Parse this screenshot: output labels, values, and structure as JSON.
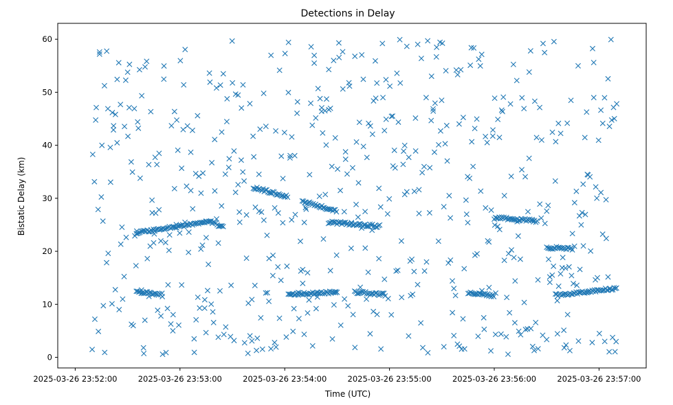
{
  "chart_data": {
    "type": "scatter",
    "title": "Detections in Delay",
    "xlabel": "Time (UTC)",
    "ylabel": "Bistatic Delay (km)",
    "marker": "x",
    "color": "#1f77b4",
    "xlim": [
      "2025-03-26 23:51:50",
      "2025-03-26 23:57:27"
    ],
    "ylim": [
      -2,
      63
    ],
    "x_ticks": [
      "2025-03-26 23:52:00",
      "2025-03-26 23:53:00",
      "2025-03-26 23:54:00",
      "2025-03-26 23:55:00",
      "2025-03-26 23:56:00",
      "2025-03-26 23:57:00"
    ],
    "y_ticks": [
      0,
      10,
      20,
      30,
      40,
      50,
      60
    ],
    "grid": false,
    "legend": "none",
    "start_time": "2025-03-26 23:52:10",
    "end_time": "2025-03-26 23:57:10",
    "interval_s": 1,
    "tracks": [
      {
        "start": "2025-03-26 23:52:35",
        "end": "2025-03-26 23:52:50",
        "y_start": 12.3,
        "y_end": 11.9
      },
      {
        "start": "2025-03-26 23:52:35",
        "end": "2025-03-26 23:53:15",
        "y_start": 23.5,
        "y_end": 25.5
      },
      {
        "start": "2025-03-26 23:53:15",
        "end": "2025-03-26 23:53:25",
        "y_start": 25.8,
        "y_end": 24.6
      },
      {
        "start": "2025-03-26 23:53:42",
        "end": "2025-03-26 23:54:02",
        "y_start": 32.0,
        "y_end": 30.3
      },
      {
        "start": "2025-03-26 23:54:10",
        "end": "2025-03-26 23:54:30",
        "y_start": 29.5,
        "y_end": 27.5
      },
      {
        "start": "2025-03-26 23:54:25",
        "end": "2025-03-26 23:54:55",
        "y_start": 25.5,
        "y_end": 24.7
      },
      {
        "start": "2025-03-26 23:54:02",
        "end": "2025-03-26 23:54:30",
        "y_start": 11.8,
        "y_end": 12.3
      },
      {
        "start": "2025-03-26 23:54:40",
        "end": "2025-03-26 23:54:58",
        "y_start": 12.3,
        "y_end": 11.8
      },
      {
        "start": "2025-03-26 23:55:45",
        "end": "2025-03-26 23:56:00",
        "y_start": 12.2,
        "y_end": 11.6
      },
      {
        "start": "2025-03-26 23:56:00",
        "end": "2025-03-26 23:56:25",
        "y_start": 26.3,
        "y_end": 25.7
      },
      {
        "start": "2025-03-26 23:56:30",
        "end": "2025-03-26 23:56:45",
        "y_start": 20.7,
        "y_end": 20.5
      },
      {
        "start": "2025-03-26 23:56:35",
        "end": "2025-03-26 23:57:10",
        "y_start": 11.7,
        "y_end": 13.0
      }
    ]
  }
}
